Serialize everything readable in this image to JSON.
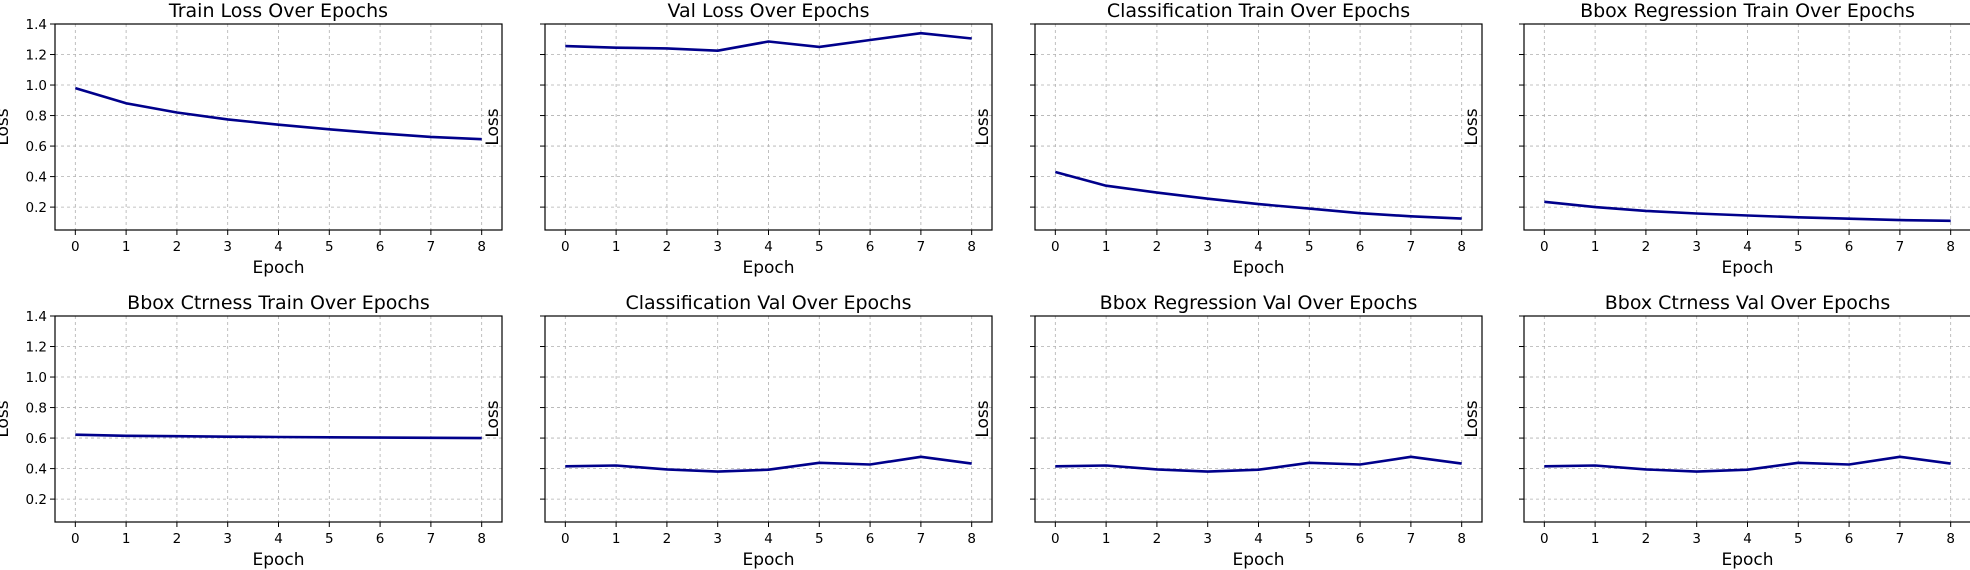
{
  "chart_data": [
    {
      "type": "line",
      "title": "Train Loss Over Epochs",
      "xlabel": "Epoch",
      "ylabel": "Loss",
      "x": [
        0,
        1,
        2,
        3,
        4,
        5,
        6,
        7,
        8
      ],
      "ylim": [
        0.05,
        1.4
      ],
      "ytick_labels": [
        "0.2",
        "0.4",
        "0.6",
        "0.8",
        "1.0",
        "1.2",
        "1.4"
      ],
      "grid": true,
      "series": [
        {
          "values": [
            0.98,
            0.88,
            0.82,
            0.775,
            0.74,
            0.71,
            0.683,
            0.66,
            0.645
          ],
          "color": "#00008b"
        }
      ]
    },
    {
      "type": "line",
      "title": "Val Loss Over Epochs",
      "xlabel": "Epoch",
      "ylabel": "Loss",
      "x": [
        0,
        1,
        2,
        3,
        4,
        5,
        6,
        7,
        8
      ],
      "ylim": [
        0.05,
        1.4
      ],
      "ytick_labels": [],
      "grid": true,
      "series": [
        {
          "values": [
            1.255,
            1.245,
            1.24,
            1.225,
            1.285,
            1.25,
            1.295,
            1.34,
            1.305
          ],
          "color": "#00008b"
        }
      ]
    },
    {
      "type": "line",
      "title": "Classification Train Over Epochs",
      "xlabel": "Epoch",
      "ylabel": "Loss",
      "x": [
        0,
        1,
        2,
        3,
        4,
        5,
        6,
        7,
        8
      ],
      "ylim": [
        0.05,
        1.4
      ],
      "ytick_labels": [],
      "grid": true,
      "series": [
        {
          "values": [
            0.43,
            0.34,
            0.295,
            0.255,
            0.22,
            0.19,
            0.16,
            0.14,
            0.125
          ],
          "color": "#00008b"
        }
      ]
    },
    {
      "type": "line",
      "title": "Bbox Regression Train Over Epochs",
      "xlabel": "Epoch",
      "ylabel": "Loss",
      "x": [
        0,
        1,
        2,
        3,
        4,
        5,
        6,
        7,
        8
      ],
      "ylim": [
        0.05,
        1.4
      ],
      "ytick_labels": [],
      "grid": true,
      "series": [
        {
          "values": [
            0.235,
            0.2,
            0.175,
            0.158,
            0.145,
            0.133,
            0.124,
            0.115,
            0.11
          ],
          "color": "#00008b"
        }
      ]
    },
    {
      "type": "line",
      "title": "Bbox Ctrness Train Over Epochs",
      "xlabel": "Epoch",
      "ylabel": "Loss",
      "x": [
        0,
        1,
        2,
        3,
        4,
        5,
        6,
        7,
        8
      ],
      "ylim": [
        0.05,
        1.4
      ],
      "ytick_labels": [
        "0.2",
        "0.4",
        "0.6",
        "0.8",
        "1.0",
        "1.2",
        "1.4"
      ],
      "grid": true,
      "series": [
        {
          "values": [
            0.622,
            0.615,
            0.612,
            0.609,
            0.607,
            0.605,
            0.603,
            0.602,
            0.6
          ],
          "color": "#00008b"
        }
      ]
    },
    {
      "type": "line",
      "title": "Classification Val Over Epochs",
      "xlabel": "Epoch",
      "ylabel": "Loss",
      "x": [
        0,
        1,
        2,
        3,
        4,
        5,
        6,
        7,
        8
      ],
      "ylim": [
        0.05,
        1.4
      ],
      "ytick_labels": [],
      "grid": true,
      "series": [
        {
          "values": [
            0.415,
            0.42,
            0.395,
            0.38,
            0.393,
            0.438,
            0.427,
            0.477,
            0.433
          ],
          "color": "#00008b"
        }
      ]
    },
    {
      "type": "line",
      "title": "Bbox Regression Val Over Epochs",
      "xlabel": "Epoch",
      "ylabel": "Loss",
      "x": [
        0,
        1,
        2,
        3,
        4,
        5,
        6,
        7,
        8
      ],
      "ylim": [
        0.05,
        1.4
      ],
      "ytick_labels": [],
      "grid": true,
      "series": [
        {
          "values": [
            0.415,
            0.42,
            0.395,
            0.38,
            0.393,
            0.438,
            0.427,
            0.477,
            0.433
          ],
          "color": "#00008b"
        }
      ]
    },
    {
      "type": "line",
      "title": "Bbox Ctrness Val Over Epochs",
      "xlabel": "Epoch",
      "ylabel": "Loss",
      "x": [
        0,
        1,
        2,
        3,
        4,
        5,
        6,
        7,
        8
      ],
      "ylim": [
        0.05,
        1.4
      ],
      "ytick_labels": [],
      "grid": true,
      "series": [
        {
          "values": [
            0.415,
            0.42,
            0.395,
            0.38,
            0.393,
            0.438,
            0.427,
            0.477,
            0.433
          ],
          "color": "#00008b"
        }
      ]
    }
  ]
}
